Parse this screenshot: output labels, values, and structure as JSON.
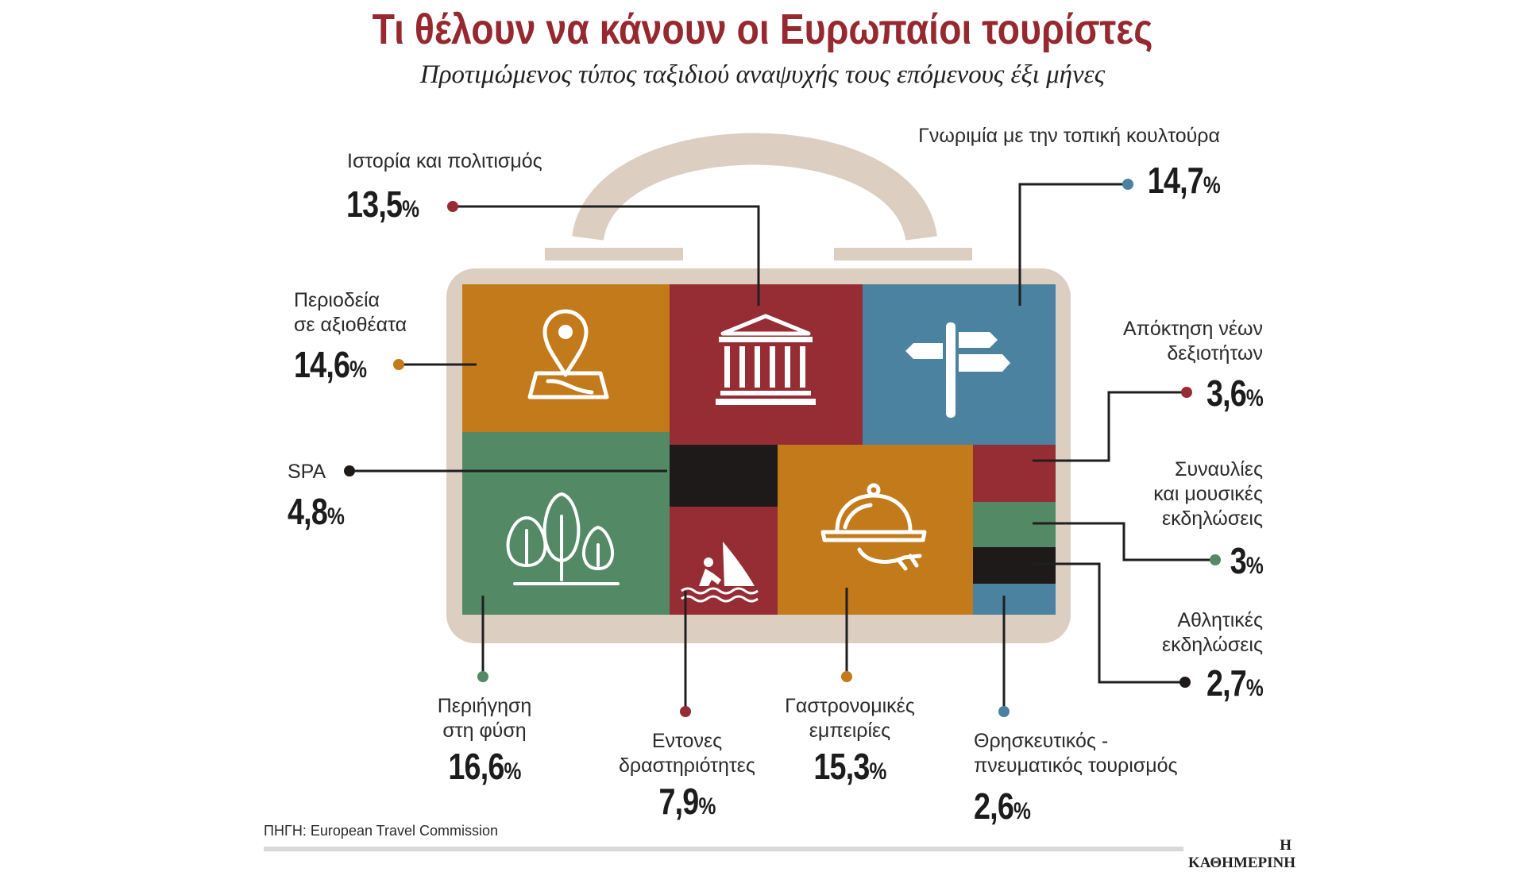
{
  "header": {
    "title": "Τι θέλουν να κάνουν οι Ευρωπαίοι τουρίστες",
    "subtitle": "Προτιμώμενος τύπος ταξιδιού αναψυχής τους επόμενους έξι μήνες"
  },
  "footer": {
    "source": "ΠΗΓΗ: European Travel Commission",
    "brand": "Η ΚΑΘΗΜΕΡΙΝΗ"
  },
  "colors": {
    "orange": "#c27a1b",
    "red": "#962d34",
    "blue": "#4a829f",
    "green": "#538a65",
    "black": "#1f1a1a",
    "frame": "#dccfc2"
  },
  "chart_data": {
    "type": "treemap",
    "unit": "%",
    "categories": [
      {
        "label": "Ιστορία και πολιτισμός",
        "value": 13.5,
        "display": "13,5",
        "color": "red",
        "icon": "temple-icon"
      },
      {
        "label": "Γνωριμία με την τοπική κουλτούρα",
        "value": 14.7,
        "display": "14,7",
        "color": "blue",
        "icon": "signpost-icon"
      },
      {
        "label": "Περιοδεία\nσε αξιοθέατα",
        "value": 14.6,
        "display": "14,6",
        "color": "orange",
        "icon": "map-pin-icon"
      },
      {
        "label": "Απόκτηση νέων\nδεξιοτήτων",
        "value": 3.6,
        "display": "3,6",
        "color": "red",
        "icon": ""
      },
      {
        "label": "SPA",
        "value": 4.8,
        "display": "4,8",
        "color": "black",
        "icon": ""
      },
      {
        "label": "Συναυλίες\nκαι μουσικές\nεκδηλώσεις",
        "value": 3,
        "display": "3",
        "color": "green",
        "icon": ""
      },
      {
        "label": "Αθλητικές\nεκδηλώσεις",
        "value": 2.7,
        "display": "2,7",
        "color": "black",
        "icon": ""
      },
      {
        "label": "Περιήγηση\nστη φύση",
        "value": 16.6,
        "display": "16,6",
        "color": "green",
        "icon": "trees-icon"
      },
      {
        "label": "Εντονες\nδραστηριότητες",
        "value": 7.9,
        "display": "7,9",
        "color": "red",
        "icon": "windsurf-icon"
      },
      {
        "label": "Γαστρονομικές\nεμπειρίες",
        "value": 15.3,
        "display": "15,3",
        "color": "orange",
        "icon": "cloche-icon"
      },
      {
        "label": "Θρησκευτικός -\nπνευματικός τουρισμός",
        "value": 2.6,
        "display": "2,6",
        "color": "blue",
        "icon": ""
      }
    ]
  }
}
